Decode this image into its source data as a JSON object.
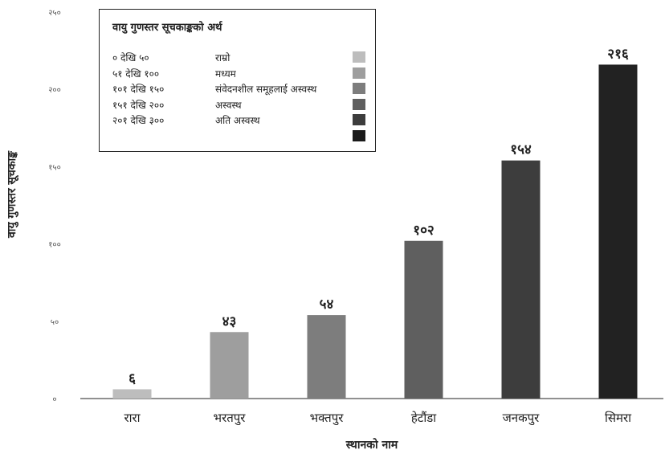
{
  "chart_data": {
    "type": "bar",
    "xlabel": "स्थानको नाम",
    "ylabel": "वायु गुणस्तर सूचकाङ्क",
    "ylim": [
      0,
      250
    ],
    "yticks": [
      {
        "value": 0,
        "label": "०"
      },
      {
        "value": 50,
        "label": "५०"
      },
      {
        "value": 100,
        "label": "१००"
      },
      {
        "value": 150,
        "label": "१५०"
      },
      {
        "value": 200,
        "label": "२००"
      },
      {
        "value": 250,
        "label": "२५०"
      }
    ],
    "categories": [
      "रारा",
      "भरतपुर",
      "भक्तपुर",
      "हेटौंडा",
      "जनकपुर",
      "सिमरा"
    ],
    "values": [
      6,
      43,
      54,
      102,
      154,
      216
    ],
    "value_labels": [
      "६",
      "४३",
      "५४",
      "१०२",
      "१५४",
      "२१६"
    ],
    "bar_colors": [
      "#bdbdbd",
      "#9e9e9e",
      "#7d7d7d",
      "#5f5f5f",
      "#3d3d3d",
      "#222222"
    ],
    "grid": false,
    "legend": {
      "position": "top-left",
      "title": "वायु गुणस्तर सूचकाङ्कको अर्थ",
      "items": [
        {
          "range": "० देखि ५०",
          "label": "राम्रो",
          "color": "#bdbdbd"
        },
        {
          "range": "५१ देखि १००",
          "label": "मध्यम",
          "color": "#9e9e9e"
        },
        {
          "range": "१०१ देखि १५०",
          "label": "संवेदनशील समूहलाई अस्वस्थ",
          "color": "#7d7d7d"
        },
        {
          "range": "१५१ देखि २००",
          "label": "अस्वस्थ",
          "color": "#5f5f5f"
        },
        {
          "range": "२०१ देखि ३००",
          "label": "अति अस्वस्थ",
          "color": "#3d3d3d"
        },
        {
          "range": "",
          "label": "",
          "color": "#1a1a1a"
        }
      ]
    }
  }
}
